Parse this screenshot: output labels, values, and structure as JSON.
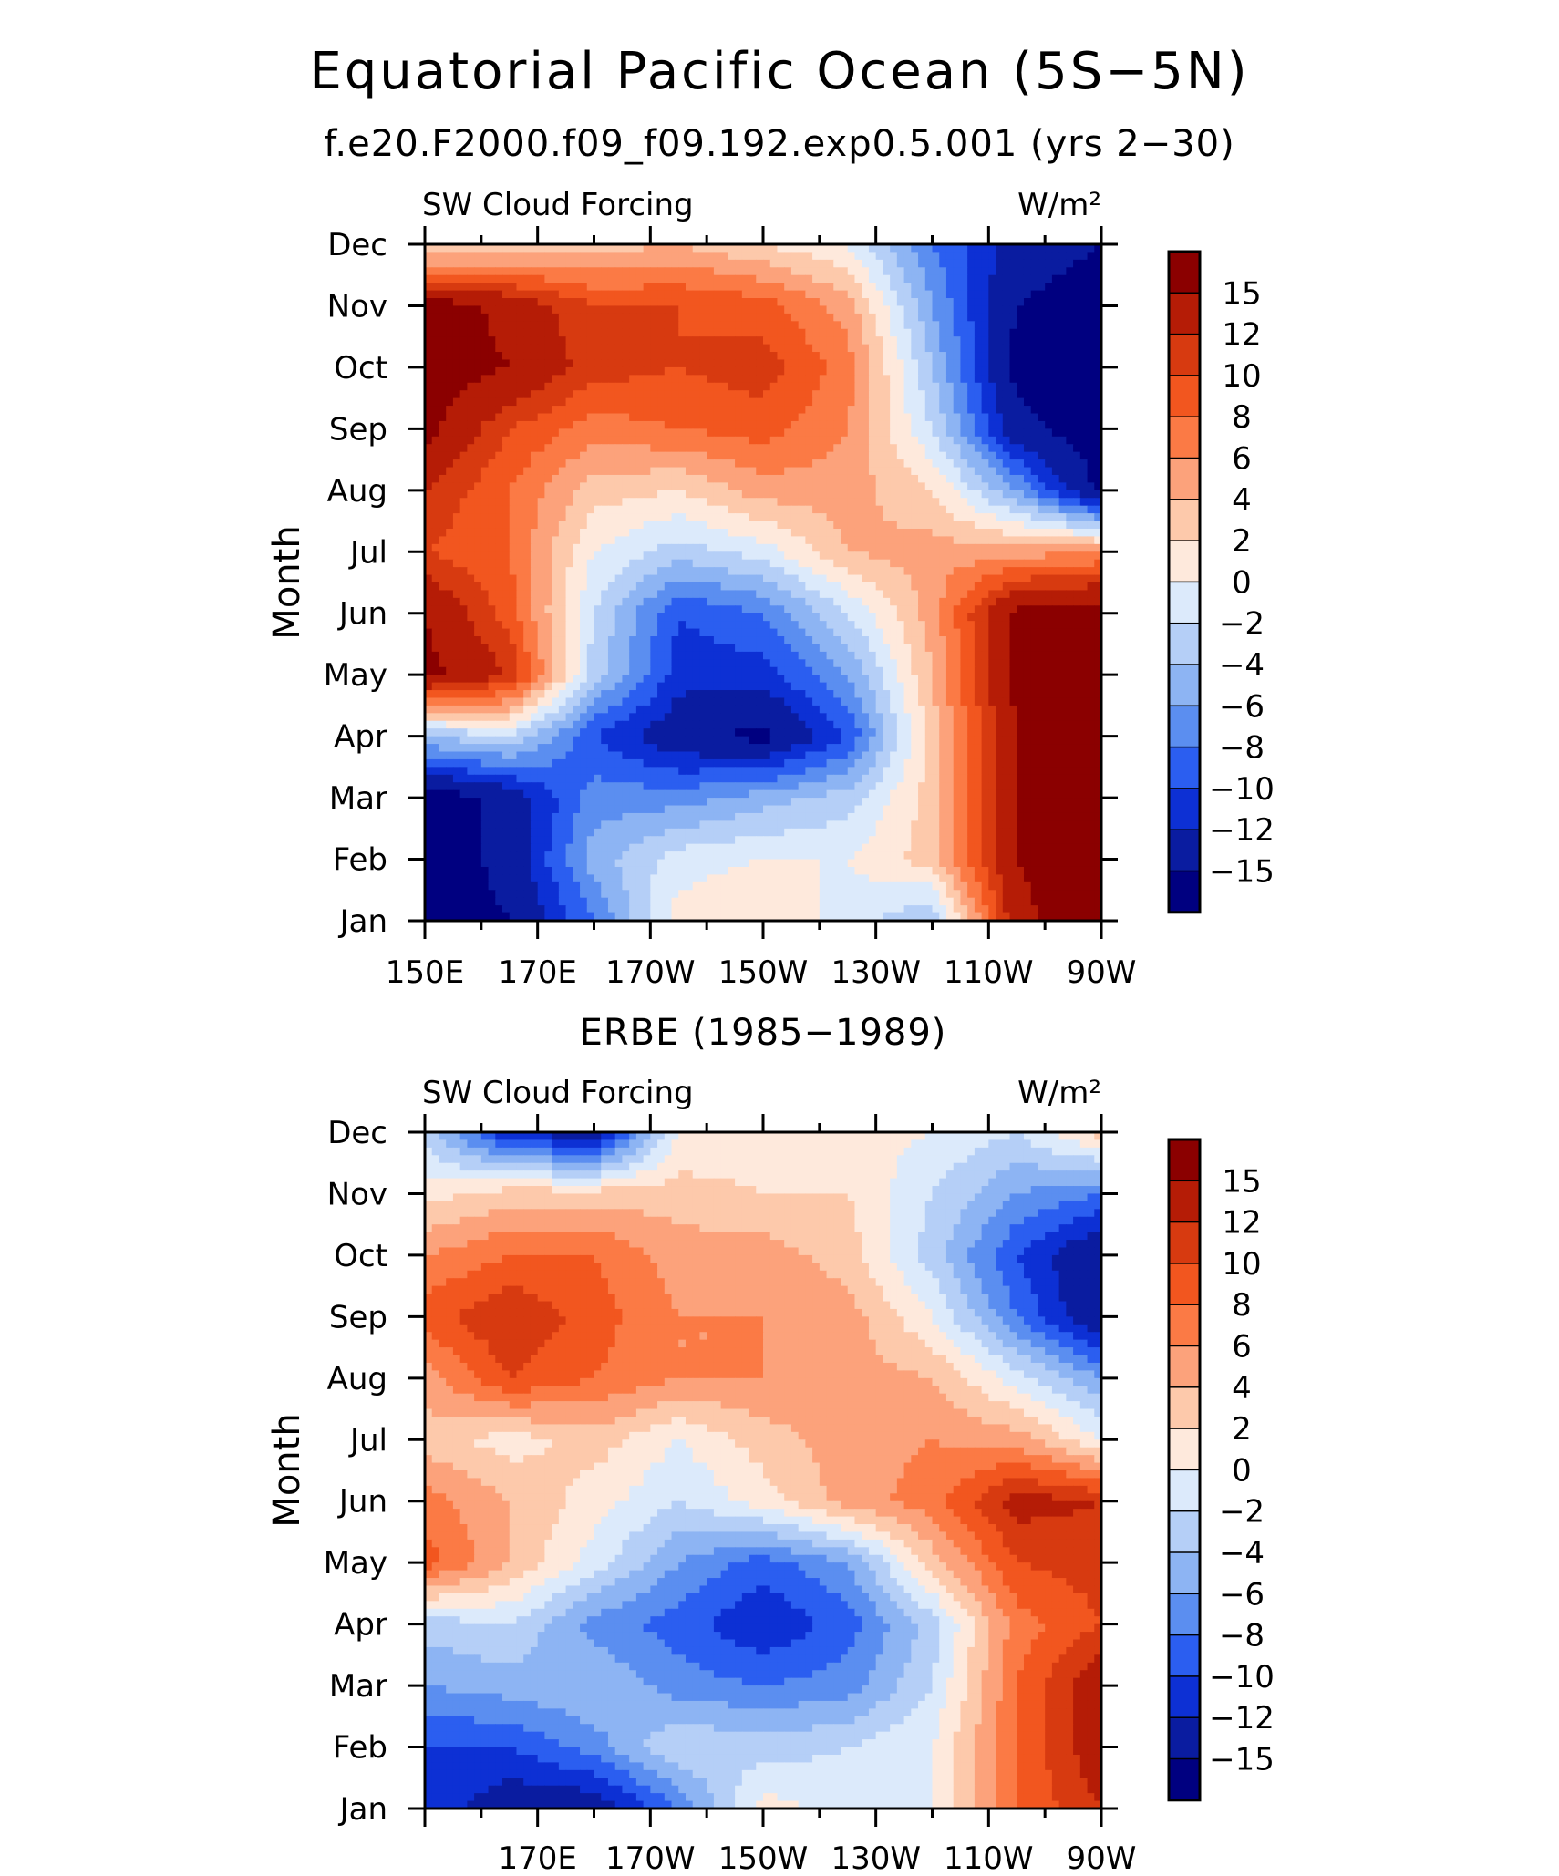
{
  "title": "Equatorial Pacific Ocean (5S−5N)",
  "subtitle": "f.e20.F2000.f09_f09.192.exp0.5.001 (yrs 2−30)",
  "color_levels": {
    "labels": [
      "15",
      "12",
      "10",
      "8",
      "6",
      "4",
      "2",
      "0",
      "−2",
      "−4",
      "−6",
      "−8",
      "−10",
      "−12",
      "−15"
    ],
    "colors_top_to_bottom": [
      "#8b0000",
      "#b51c06",
      "#d73a10",
      "#f2561f",
      "#fb7a45",
      "#fca27b",
      "#fdc9ab",
      "#fee9dc",
      "#dceafb",
      "#b5cff7",
      "#8db4f3",
      "#5b8ef0",
      "#2b5ef0",
      "#0d30d4",
      "#0a1ca0",
      "#000080"
    ]
  },
  "chart_data": [
    {
      "type": "heatmap",
      "title": "f.e20.F2000.f09_f09.192.exp0.5.001 (yrs 2−30)",
      "left_label": "SW Cloud Forcing",
      "right_label": "W/m²",
      "ylabel": "Month",
      "x_ticks": [
        "150E",
        "170E",
        "170W",
        "150W",
        "130W",
        "110W",
        "90W"
      ],
      "y_ticks": [
        "Jan",
        "Feb",
        "Mar",
        "Apr",
        "May",
        "Jun",
        "Jul",
        "Aug",
        "Sep",
        "Oct",
        "Nov",
        "Dec"
      ],
      "x_range_deg_east": [
        150,
        270
      ],
      "grid": {
        "lons": [
          150,
          165,
          180,
          195,
          210,
          225,
          240,
          255,
          270
        ],
        "months": [
          "Jan",
          "Feb",
          "Mar",
          "Apr",
          "May",
          "Jun",
          "Jul",
          "Aug",
          "Sep",
          "Oct",
          "Nov",
          "Dec"
        ],
        "values": [
          [
            -17,
            -15,
            -8,
            1,
            2,
            -1,
            -4,
            14,
            18
          ],
          [
            -17,
            -14,
            -5,
            -1,
            0,
            0,
            3,
            15,
            18
          ],
          [
            -17,
            -14,
            -7,
            -7,
            -5,
            -3,
            3,
            15,
            18
          ],
          [
            -4,
            -2,
            -10,
            -14,
            -16,
            -10,
            3,
            15,
            18
          ],
          [
            16,
            12,
            -3,
            -11,
            -11,
            -6,
            4,
            16,
            18
          ],
          [
            15,
            9,
            -2,
            -10,
            -8,
            -2,
            5,
            16,
            17
          ],
          [
            10,
            8,
            0,
            -3,
            -1,
            4,
            5,
            5,
            6
          ],
          [
            12,
            8,
            3,
            2,
            5,
            5,
            2,
            -6,
            -16
          ],
          [
            16,
            10,
            7,
            8,
            9,
            6,
            -2,
            -14,
            -17
          ],
          [
            17,
            15,
            11,
            10,
            11,
            7,
            -4,
            -16,
            -17
          ],
          [
            17,
            14,
            10,
            10,
            9,
            5,
            -6,
            -15,
            -17
          ],
          [
            1,
            2,
            3,
            4,
            2,
            0,
            -8,
            -13,
            -15
          ]
        ]
      }
    },
    {
      "type": "heatmap",
      "title": "ERBE (1985−1989)",
      "left_label": "SW Cloud Forcing",
      "right_label": "W/m²",
      "ylabel": "Month",
      "x_ticks": [
        "170E",
        "170W",
        "150W",
        "130W",
        "110W",
        "90W"
      ],
      "y_ticks": [
        "Jan",
        "Feb",
        "Mar",
        "Apr",
        "May",
        "Jun",
        "Jul",
        "Aug",
        "Sep",
        "Oct",
        "Nov",
        "Dec"
      ],
      "x_range_deg_east": [
        150,
        270
      ],
      "grid": {
        "lons": [
          150,
          165,
          180,
          195,
          210,
          225,
          240,
          255,
          270
        ],
        "months": [
          "Jan",
          "Feb",
          "Mar",
          "Apr",
          "May",
          "Jun",
          "Jul",
          "Aug",
          "Sep",
          "Oct",
          "Nov",
          "Dec"
        ],
        "values": [
          [
            -10,
            -14,
            -14,
            -8,
            1,
            -1,
            0,
            8,
            12
          ],
          [
            -10,
            -10,
            -7,
            -2,
            -3,
            -2,
            0,
            8,
            14
          ],
          [
            -6,
            -5,
            -4,
            -7,
            -8,
            -7,
            -2,
            8,
            14
          ],
          [
            -3,
            -2,
            -7,
            -9,
            -12,
            -9,
            -3,
            7,
            10
          ],
          [
            9,
            4,
            -1,
            -6,
            -9,
            -6,
            3,
            10,
            11
          ],
          [
            7,
            4,
            1,
            -2,
            1,
            5,
            7,
            13,
            12
          ],
          [
            3,
            1,
            3,
            0,
            3,
            5,
            6,
            5,
            0
          ],
          [
            5,
            10,
            8,
            6,
            6,
            5,
            4,
            -1,
            -6
          ],
          [
            9,
            12,
            9,
            6,
            6,
            5,
            0,
            -8,
            -15
          ],
          [
            6,
            8,
            8,
            5,
            5,
            3,
            -3,
            -10,
            -15
          ],
          [
            1,
            3,
            3,
            3,
            2,
            2,
            -2,
            -6,
            -8
          ],
          [
            -3,
            -12,
            -14,
            0,
            1,
            1,
            0,
            -2,
            3
          ]
        ]
      }
    }
  ]
}
